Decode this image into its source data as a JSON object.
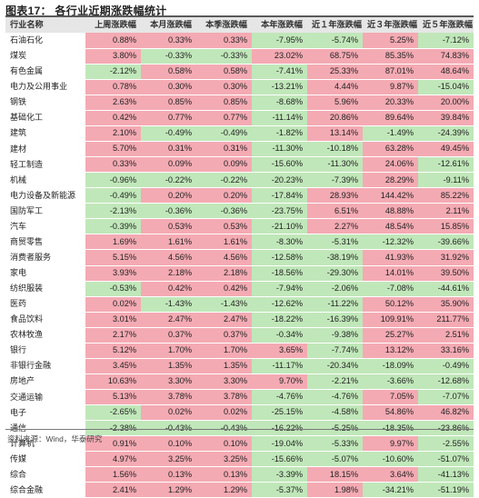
{
  "title": "图表17：  各行业近期涨跌幅统计",
  "source": "资料来源：Wind，华泰研究",
  "colors": {
    "up": "#f4aab3",
    "down": "#c0e7b9",
    "header": "#e6e6e6"
  },
  "headers": [
    "行业名称",
    "上周涨跌幅",
    "本月涨跌幅",
    "本季涨跌幅",
    "本年涨跌幅",
    "近１年涨跌幅",
    "近３年涨跌幅",
    "近５年涨跌幅"
  ],
  "rows": [
    [
      "石油石化",
      "0.88%",
      "0.33%",
      "0.33%",
      "-7.95%",
      "-5.74%",
      "5.25%",
      "-7.12%"
    ],
    [
      "煤炭",
      "3.80%",
      "-0.33%",
      "-0.33%",
      "23.02%",
      "68.75%",
      "85.35%",
      "74.83%"
    ],
    [
      "有色金属",
      "-2.12%",
      "0.58%",
      "0.58%",
      "-7.41%",
      "25.33%",
      "87.01%",
      "48.64%"
    ],
    [
      "电力及公用事业",
      "0.78%",
      "0.30%",
      "0.30%",
      "-13.21%",
      "4.44%",
      "9.87%",
      "-15.04%"
    ],
    [
      "钢铁",
      "2.63%",
      "0.85%",
      "0.85%",
      "-8.68%",
      "5.96%",
      "20.33%",
      "20.00%"
    ],
    [
      "基础化工",
      "0.42%",
      "0.77%",
      "0.77%",
      "-11.14%",
      "20.86%",
      "89.64%",
      "39.84%"
    ],
    [
      "建筑",
      "2.10%",
      "-0.49%",
      "-0.49%",
      "-1.82%",
      "13.14%",
      "-1.49%",
      "-24.39%"
    ],
    [
      "建材",
      "5.70%",
      "0.31%",
      "0.31%",
      "-11.30%",
      "-10.18%",
      "63.28%",
      "49.45%"
    ],
    [
      "轻工制造",
      "0.33%",
      "0.09%",
      "0.09%",
      "-15.60%",
      "-11.30%",
      "24.06%",
      "-12.61%"
    ],
    [
      "机械",
      "-0.96%",
      "-0.22%",
      "-0.22%",
      "-20.23%",
      "-7.39%",
      "28.29%",
      "-9.11%"
    ],
    [
      "电力设备及新能源",
      "-0.49%",
      "0.20%",
      "0.20%",
      "-17.84%",
      "28.93%",
      "144.42%",
      "85.22%"
    ],
    [
      "国防军工",
      "-2.13%",
      "-0.36%",
      "-0.36%",
      "-23.75%",
      "6.51%",
      "48.88%",
      "2.11%"
    ],
    [
      "汽车",
      "-0.39%",
      "0.53%",
      "0.53%",
      "-21.10%",
      "2.27%",
      "48.54%",
      "15.85%"
    ],
    [
      "商贸零售",
      "1.69%",
      "1.61%",
      "1.61%",
      "-8.30%",
      "-5.31%",
      "-12.32%",
      "-39.66%"
    ],
    [
      "消费者服务",
      "5.15%",
      "4.56%",
      "4.56%",
      "-12.58%",
      "-38.19%",
      "41.93%",
      "31.92%"
    ],
    [
      "家电",
      "3.93%",
      "2.18%",
      "2.18%",
      "-18.56%",
      "-29.30%",
      "14.01%",
      "39.50%"
    ],
    [
      "纺织服装",
      "-0.53%",
      "0.42%",
      "0.42%",
      "-7.94%",
      "-2.06%",
      "-7.08%",
      "-44.61%"
    ],
    [
      "医药",
      "0.02%",
      "-1.43%",
      "-1.43%",
      "-12.62%",
      "-11.22%",
      "50.12%",
      "35.90%"
    ],
    [
      "食品饮料",
      "3.01%",
      "2.47%",
      "2.47%",
      "-18.22%",
      "-16.39%",
      "109.91%",
      "211.77%"
    ],
    [
      "农林牧渔",
      "2.17%",
      "0.37%",
      "0.37%",
      "-0.34%",
      "-9.38%",
      "25.27%",
      "2.51%"
    ],
    [
      "银行",
      "5.12%",
      "1.70%",
      "1.70%",
      "3.65%",
      "-7.74%",
      "13.12%",
      "33.16%"
    ],
    [
      "非银行金融",
      "3.45%",
      "1.35%",
      "1.35%",
      "-11.17%",
      "-20.34%",
      "-18.09%",
      "-0.49%"
    ],
    [
      "房地产",
      "10.63%",
      "3.30%",
      "3.30%",
      "9.70%",
      "-2.21%",
      "-3.66%",
      "-12.68%"
    ],
    [
      "交通运输",
      "5.13%",
      "3.78%",
      "3.78%",
      "-4.76%",
      "-4.76%",
      "7.05%",
      "-7.07%"
    ],
    [
      "电子",
      "-2.65%",
      "0.02%",
      "0.02%",
      "-25.15%",
      "-4.58%",
      "54.86%",
      "46.82%"
    ],
    [
      "通信",
      "-2.38%",
      "-0.43%",
      "-0.43%",
      "-16.22%",
      "-5.25%",
      "-18.35%",
      "-23.86%"
    ],
    [
      "计算机",
      "0.91%",
      "0.10%",
      "0.10%",
      "-19.04%",
      "-5.33%",
      "9.97%",
      "-2.55%"
    ],
    [
      "传媒",
      "4.97%",
      "3.25%",
      "3.25%",
      "-15.66%",
      "-5.07%",
      "-10.60%",
      "-51.07%"
    ],
    [
      "综合",
      "1.56%",
      "0.13%",
      "0.13%",
      "-3.39%",
      "18.15%",
      "3.64%",
      "-41.13%"
    ],
    [
      "综合金融",
      "2.41%",
      "1.29%",
      "1.29%",
      "-5.37%",
      "1.98%",
      "-34.21%",
      "-51.19%"
    ]
  ]
}
